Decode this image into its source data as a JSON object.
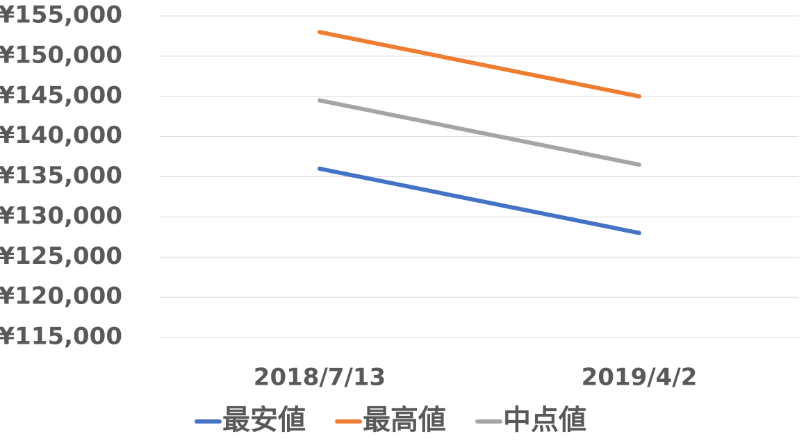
{
  "chart_data": {
    "type": "line",
    "categories": [
      "2018/7/13",
      "2019/4/2"
    ],
    "series": [
      {
        "name": "最安値",
        "color": "#4472c4",
        "values": [
          136000,
          128000
        ]
      },
      {
        "name": "最高値",
        "color": "#ed7d31",
        "values": [
          153000,
          145000
        ]
      },
      {
        "name": "中点値",
        "color": "#a5a5a5",
        "values": [
          144500,
          136500
        ]
      }
    ],
    "ylim": [
      115000,
      155000
    ],
    "yticks": [
      {
        "value": 115000,
        "label": "¥115,000"
      },
      {
        "value": 120000,
        "label": "¥120,000"
      },
      {
        "value": 125000,
        "label": "¥125,000"
      },
      {
        "value": 130000,
        "label": "¥130,000"
      },
      {
        "value": 135000,
        "label": "¥135,000"
      },
      {
        "value": 140000,
        "label": "¥140,000"
      },
      {
        "value": 145000,
        "label": "¥145,000"
      },
      {
        "value": 150000,
        "label": "¥150,000"
      },
      {
        "value": 155000,
        "label": "¥155,000"
      }
    ],
    "grid": true,
    "legend": "bottom"
  }
}
